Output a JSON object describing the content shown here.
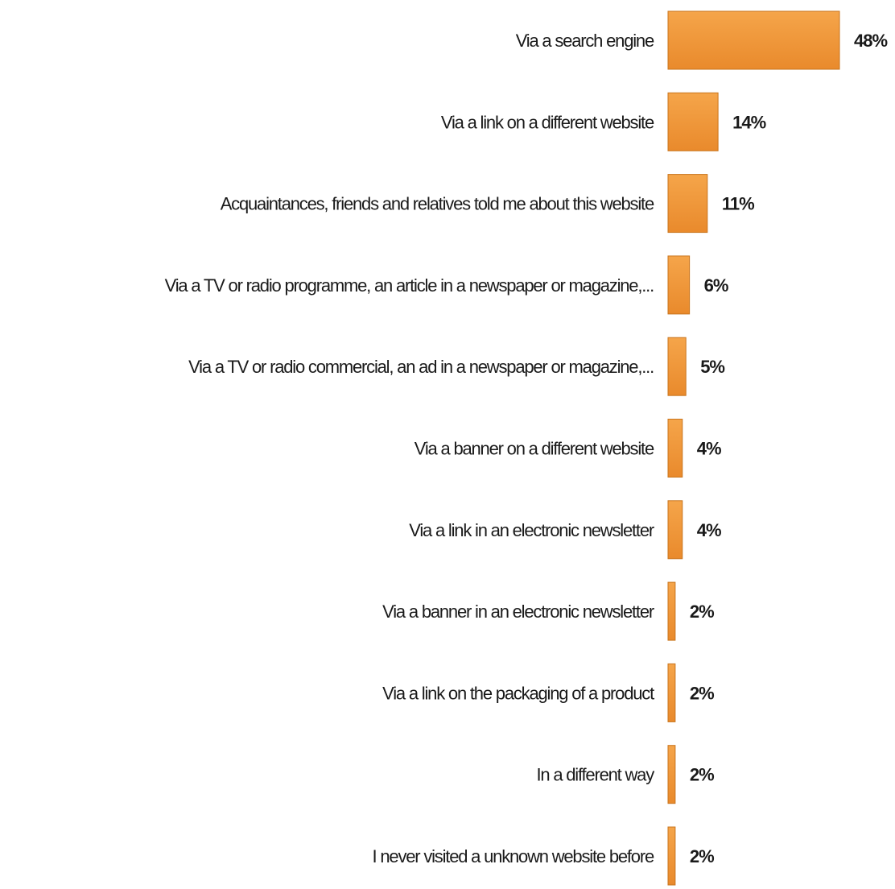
{
  "chart_data": {
    "type": "bar",
    "orientation": "horizontal",
    "title": "",
    "xlabel": "",
    "ylabel": "",
    "grid": false,
    "legend": "none",
    "xlim": [
      0,
      48
    ],
    "bar_color": "#f09b3e",
    "bar_edge_color": "#c9741c",
    "categories": [
      "Via a search engine",
      "Via a link on a different website",
      "Acquaintances, friends and relatives told me about this website",
      "Via a TV or radio programme, an article in a newspaper or magazine,...",
      "Via a TV or radio commercial, an ad in a newspaper or magazine,...",
      "Via a banner on a different website",
      "Via a link in an electronic newsletter",
      "Via a banner in an electronic newsletter",
      "Via a link on the packaging of a product",
      "In a different way",
      "I never visited a unknown website before"
    ],
    "values": [
      48,
      14,
      11,
      6,
      5,
      4,
      4,
      2,
      2,
      2,
      2
    ],
    "value_labels": [
      "48%",
      "14%",
      "11%",
      "6%",
      "5%",
      "4%",
      "4%",
      "2%",
      "2%",
      "2%",
      "2%"
    ]
  }
}
